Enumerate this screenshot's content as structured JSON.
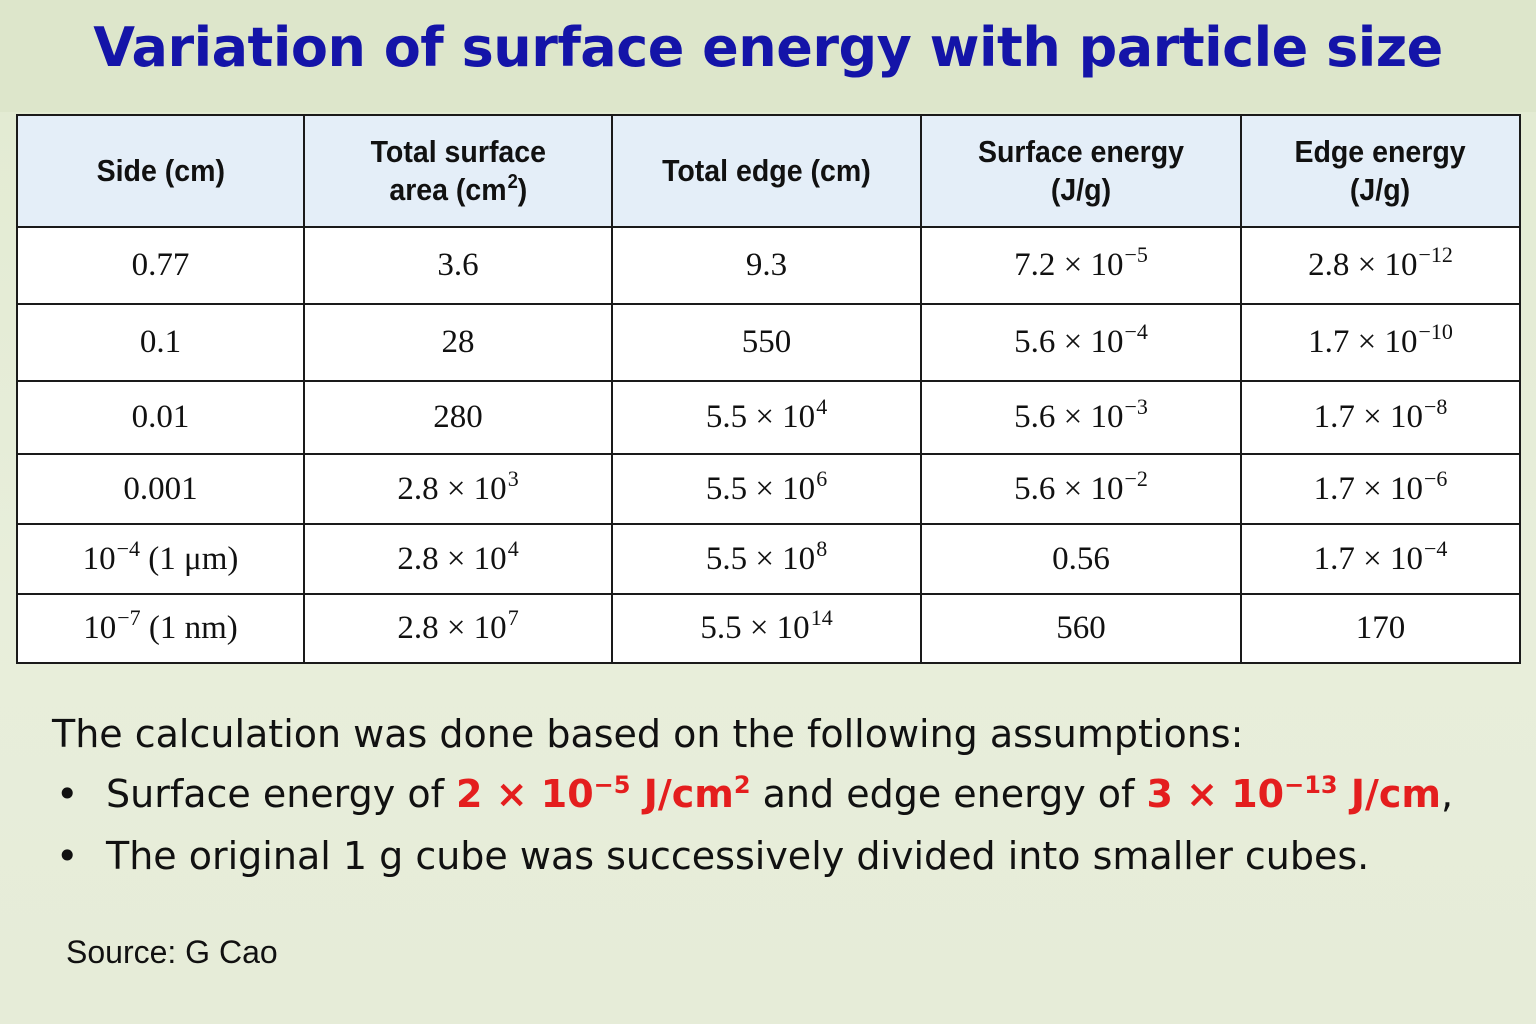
{
  "title": "Variation of surface energy with particle size",
  "table": {
    "headers": [
      {
        "line1": "Side (cm)",
        "line2": "",
        "sup": "",
        "tail": ""
      },
      {
        "line1": "Total surface",
        "line2": "area (cm",
        "sup": "2",
        "tail": ")"
      },
      {
        "line1": "Total edge (cm)",
        "line2": "",
        "sup": "",
        "tail": ""
      },
      {
        "line1": "Surface energy",
        "line2": "(J/g)",
        "sup": "",
        "tail": ""
      },
      {
        "line1": "Edge energy",
        "line2": "(J/g)",
        "sup": "",
        "tail": ""
      }
    ],
    "rows": [
      [
        {
          "base": "0.77",
          "sup": "",
          "tail": ""
        },
        {
          "base": "3.6",
          "sup": "",
          "tail": ""
        },
        {
          "base": "9.3",
          "sup": "",
          "tail": ""
        },
        {
          "base": "7.2 × 10",
          "sup": "−5",
          "tail": ""
        },
        {
          "base": "2.8 × 10",
          "sup": "−12",
          "tail": ""
        }
      ],
      [
        {
          "base": "0.1",
          "sup": "",
          "tail": ""
        },
        {
          "base": "28",
          "sup": "",
          "tail": ""
        },
        {
          "base": "550",
          "sup": "",
          "tail": ""
        },
        {
          "base": "5.6 × 10",
          "sup": "−4",
          "tail": ""
        },
        {
          "base": "1.7 × 10",
          "sup": "−10",
          "tail": ""
        }
      ],
      [
        {
          "base": "0.01",
          "sup": "",
          "tail": ""
        },
        {
          "base": "280",
          "sup": "",
          "tail": ""
        },
        {
          "base": "5.5 × 10",
          "sup": "4",
          "tail": ""
        },
        {
          "base": "5.6 × 10",
          "sup": "−3",
          "tail": ""
        },
        {
          "base": "1.7 × 10",
          "sup": "−8",
          "tail": ""
        }
      ],
      [
        {
          "base": "0.001",
          "sup": "",
          "tail": ""
        },
        {
          "base": "2.8 × 10",
          "sup": "3",
          "tail": ""
        },
        {
          "base": "5.5 × 10",
          "sup": "6",
          "tail": ""
        },
        {
          "base": "5.6 × 10",
          "sup": "−2",
          "tail": ""
        },
        {
          "base": "1.7 × 10",
          "sup": "−6",
          "tail": ""
        }
      ],
      [
        {
          "base": "10",
          "sup": "−4",
          "tail": " (1 μm)"
        },
        {
          "base": "2.8 × 10",
          "sup": "4",
          "tail": ""
        },
        {
          "base": "5.5 × 10",
          "sup": "8",
          "tail": ""
        },
        {
          "base": "0.56",
          "sup": "",
          "tail": ""
        },
        {
          "base": "1.7 × 10",
          "sup": "−4",
          "tail": ""
        }
      ],
      [
        {
          "base": "10",
          "sup": "−7",
          "tail": " (1 nm)"
        },
        {
          "base": "2.8 × 10",
          "sup": "7",
          "tail": ""
        },
        {
          "base": "5.5 × 10",
          "sup": "14",
          "tail": ""
        },
        {
          "base": "560",
          "sup": "",
          "tail": ""
        },
        {
          "base": "170",
          "sup": "",
          "tail": ""
        }
      ]
    ]
  },
  "notes": {
    "intro": "The calculation was done based on the following assumptions:",
    "bullet_symbol": "•",
    "bullet1": {
      "t1": "Surface energy of ",
      "v1_base": "2 × 10",
      "v1_sup": "−5",
      "v1_unit": " J/cm",
      "v1_unit_sup": "2",
      "t2": " and edge energy of ",
      "v2_base": "3 × 10",
      "v2_sup": "−13",
      "v2_unit": " J/cm",
      "t3": ","
    },
    "bullet2": "The original 1 g cube was successively divided into smaller cubes."
  },
  "source": "Source: G Cao",
  "colors": {
    "title": "#1414a8",
    "highlight": "#e41e1e",
    "header_bg": "#e4eef8",
    "page_bg": "#e6ecd8"
  }
}
